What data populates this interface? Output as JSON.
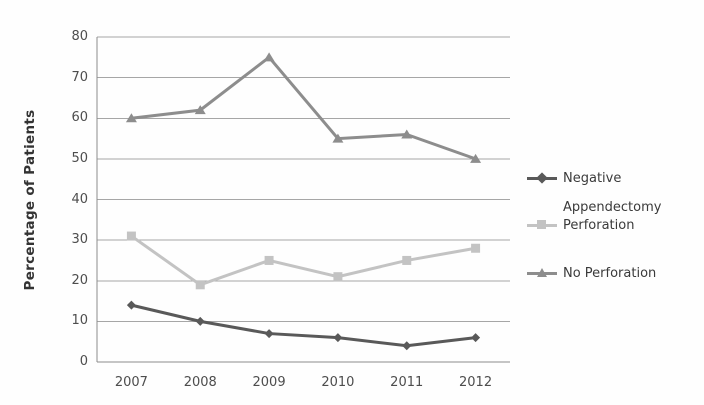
{
  "chart_data": {
    "type": "line",
    "x": [
      "2007",
      "2008",
      "2009",
      "2010",
      "2011",
      "2012"
    ],
    "series": [
      {
        "name": "Negative Appendectomy",
        "marker": "diamond",
        "color": "#595959",
        "values": [
          14,
          10,
          7,
          6,
          4,
          6
        ]
      },
      {
        "name": "Perforation",
        "marker": "square",
        "color": "#c3c3c3",
        "values": [
          31,
          19,
          25,
          21,
          25,
          28
        ]
      },
      {
        "name": "No Perforation",
        "marker": "triangle",
        "color": "#8d8d8d",
        "values": [
          60,
          62,
          75,
          55,
          56,
          50
        ]
      }
    ],
    "title": "",
    "xlabel": "",
    "ylabel": "Percentage of Patients",
    "ylim": [
      0,
      80
    ],
    "ytick_step": 10,
    "ytick_labels_top_to_bottom": [
      "80",
      "70",
      "60",
      "50",
      "40",
      "30",
      "20",
      "10",
      "0"
    ],
    "grid": true,
    "legend_position": "right-middle"
  },
  "legend": {
    "rows": [
      {
        "text": "Negative",
        "series_index": 0,
        "show_marker": true
      },
      {
        "text": "Appendectomy",
        "series_index": 0,
        "show_marker": false
      },
      {
        "text": "Perforation",
        "series_index": 1,
        "show_marker": true
      },
      {
        "text": "No Perforation",
        "series_index": 2,
        "show_marker": true
      }
    ]
  },
  "colors": {
    "background": "#fefefe",
    "gridline": "#a6a6a6",
    "axis_line": "#8c8c8c",
    "tick_text": "#4d4d4d",
    "legend_text": "#3a3a3a"
  }
}
